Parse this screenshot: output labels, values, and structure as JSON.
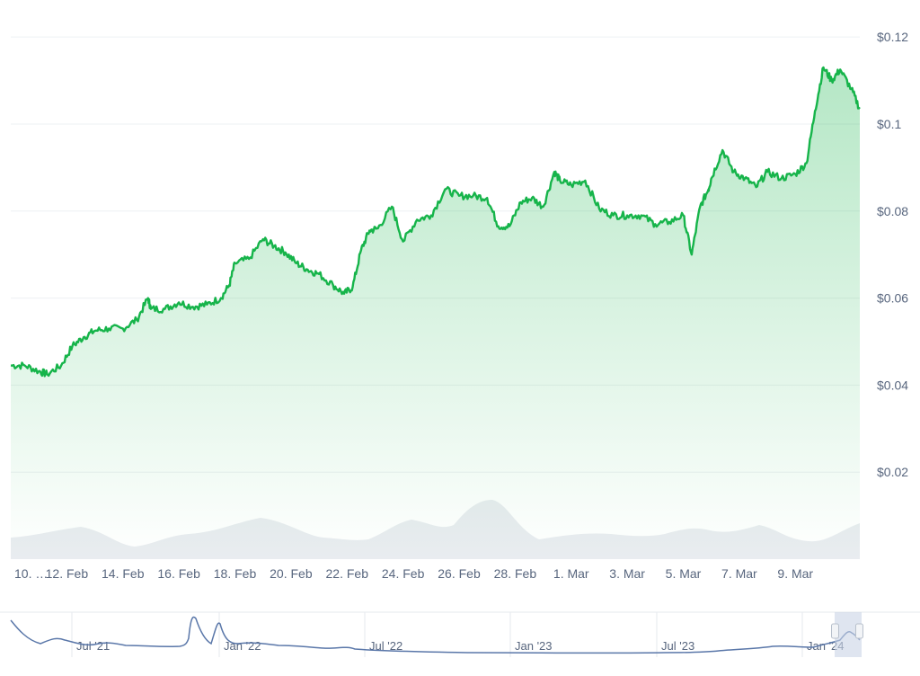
{
  "chart_data": {
    "type": "area",
    "title": "",
    "xlabel": "",
    "ylabel": "",
    "ylim": [
      0.0,
      0.1285
    ],
    "y_ticks": [
      {
        "value": 0.12,
        "label": "$0.12"
      },
      {
        "value": 0.1,
        "label": "$0.1"
      },
      {
        "value": 0.08,
        "label": "$0.08"
      },
      {
        "value": 0.06,
        "label": "$0.06"
      },
      {
        "value": 0.04,
        "label": "$0.04"
      },
      {
        "value": 0.02,
        "label": "$0.02"
      }
    ],
    "x_tick_labels": [
      "10. …",
      "12. Feb",
      "14. Feb",
      "16. Feb",
      "18. Feb",
      "20. Feb",
      "22. Feb",
      "24. Feb",
      "26. Feb",
      "28. Feb",
      "1. Mar",
      "3. Mar",
      "5. Mar",
      "7. Mar",
      "9. Mar"
    ],
    "x_tick_days": [
      0,
      2,
      4,
      6,
      8,
      10,
      12,
      14,
      16,
      18,
      20,
      22,
      24,
      26,
      28
    ],
    "xlim": [
      0,
      30.3
    ],
    "grid": true,
    "legend": "none",
    "colors": {
      "line": "#16b44a",
      "fill_top": "#16b44a",
      "grid": "#eef0f3",
      "tick_text": "#58667e",
      "volume": "#e9ecf0",
      "navigator_line": "#5a77a9",
      "navigator_selection": "#c9d4e6"
    },
    "series": [
      {
        "x": [
          0,
          0.5,
          1,
          1.3,
          1.8,
          2.2,
          2.6,
          3.0,
          3.5,
          4.0,
          4.5,
          4.9,
          5.0,
          5.5,
          6.0,
          6.5,
          7.0,
          7.5,
          7.8,
          8.0,
          8.5,
          9.0,
          9.4,
          9.8,
          10.2,
          10.6,
          11.0,
          11.5,
          11.9,
          12.2,
          12.5,
          12.8,
          13.1,
          13.6,
          14.0,
          14.5,
          15.0,
          15.5,
          16.0,
          16.5,
          17.0,
          17.4,
          17.8,
          18.2,
          18.6,
          19.0,
          19.4,
          19.6,
          20.0,
          20.5,
          21.0,
          21.5,
          22.0,
          22.5,
          23.0,
          23.5,
          24.0,
          24.3,
          24.6,
          24.9,
          25.0,
          25.4,
          25.8,
          26.2,
          26.6,
          27.0,
          27.5,
          28.0,
          28.4,
          28.7,
          29.0,
          29.3,
          29.6,
          30.0,
          30.3
        ],
        "values": [
          0.0445,
          0.0445,
          0.0432,
          0.0425,
          0.0445,
          0.049,
          0.051,
          0.0525,
          0.053,
          0.053,
          0.055,
          0.06,
          0.0575,
          0.0575,
          0.059,
          0.058,
          0.0585,
          0.06,
          0.063,
          0.068,
          0.069,
          0.0735,
          0.072,
          0.0705,
          0.068,
          0.0665,
          0.0655,
          0.063,
          0.061,
          0.0625,
          0.071,
          0.0755,
          0.076,
          0.081,
          0.073,
          0.078,
          0.079,
          0.085,
          0.0835,
          0.0835,
          0.083,
          0.0765,
          0.0765,
          0.082,
          0.083,
          0.081,
          0.089,
          0.087,
          0.086,
          0.087,
          0.0805,
          0.079,
          0.079,
          0.079,
          0.077,
          0.0775,
          0.079,
          0.07,
          0.081,
          0.085,
          0.0875,
          0.094,
          0.089,
          0.0875,
          0.0855,
          0.089,
          0.0875,
          0.0885,
          0.091,
          0.103,
          0.113,
          0.11,
          0.1125,
          0.108,
          0.1035
        ]
      }
    ]
  },
  "navigator": {
    "labels": [
      "Jul '21",
      "Jan '22",
      "Jul '22",
      "Jan '23",
      "Jul '23",
      "Jan '24"
    ]
  }
}
